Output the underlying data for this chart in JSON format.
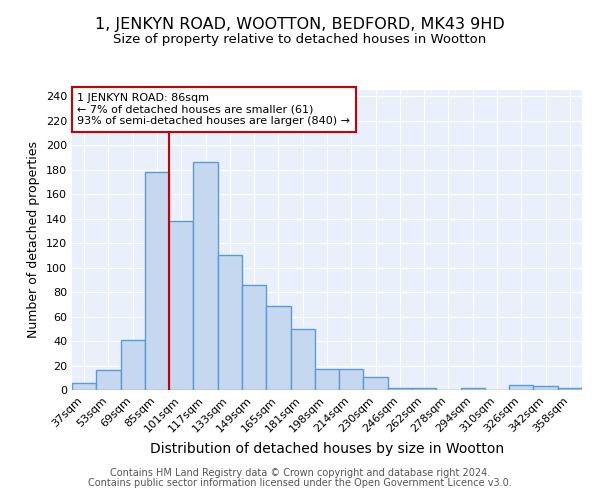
{
  "title": "1, JENKYN ROAD, WOOTTON, BEDFORD, MK43 9HD",
  "subtitle": "Size of property relative to detached houses in Wootton",
  "xlabel": "Distribution of detached houses by size in Wootton",
  "ylabel": "Number of detached properties",
  "footer_line1": "Contains HM Land Registry data © Crown copyright and database right 2024.",
  "footer_line2": "Contains public sector information licensed under the Open Government Licence v3.0.",
  "categories": [
    "37sqm",
    "53sqm",
    "69sqm",
    "85sqm",
    "101sqm",
    "117sqm",
    "133sqm",
    "149sqm",
    "165sqm",
    "181sqm",
    "198sqm",
    "214sqm",
    "230sqm",
    "246sqm",
    "262sqm",
    "278sqm",
    "294sqm",
    "310sqm",
    "326sqm",
    "342sqm",
    "358sqm"
  ],
  "values": [
    6,
    16,
    41,
    178,
    138,
    186,
    110,
    86,
    69,
    50,
    17,
    17,
    11,
    2,
    2,
    0,
    2,
    0,
    4,
    3,
    2
  ],
  "bar_color": "#c5d8f0",
  "bar_edge_color": "#5b9bd5",
  "bar_linewidth": 1.0,
  "vline_color": "#cc0000",
  "vline_x_index": 3,
  "annotation_text": "1 JENKYN ROAD: 86sqm\n← 7% of detached houses are smaller (61)\n93% of semi-detached houses are larger (840) →",
  "annotation_box_color": "#ffffff",
  "annotation_box_edge": "#cc0000",
  "ylim": [
    0,
    245
  ],
  "yticks": [
    0,
    20,
    40,
    60,
    80,
    100,
    120,
    140,
    160,
    180,
    200,
    220,
    240
  ],
  "plot_bg_color": "#eaf0fb",
  "title_fontsize": 11.5,
  "subtitle_fontsize": 9.5,
  "xlabel_fontsize": 10,
  "ylabel_fontsize": 9,
  "tick_fontsize": 8,
  "annotation_fontsize": 8,
  "footer_fontsize": 7
}
